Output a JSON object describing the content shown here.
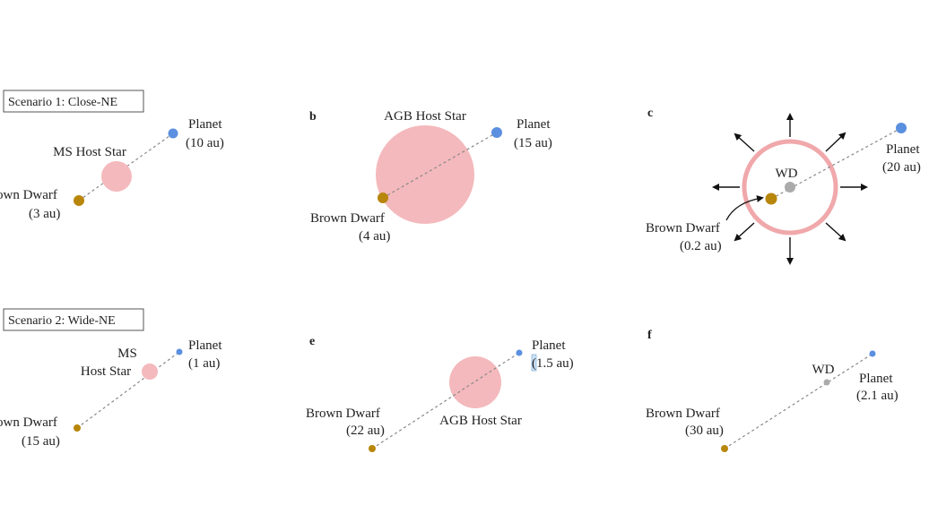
{
  "scenarios": {
    "s1": "Scenario 1: Close-NE",
    "s2": "Scenario 2: Wide-NE"
  },
  "panels": {
    "a": {
      "host": "MS Host Star",
      "planet": [
        "Planet",
        "(10 au)"
      ],
      "bd": [
        "own Dwarf",
        "(3 au)"
      ]
    },
    "b": {
      "letter": "b",
      "host": "AGB Host Star",
      "planet": [
        "Planet",
        "(15 au)"
      ],
      "bd": [
        "Brown Dwarf",
        "(4 au)"
      ]
    },
    "c": {
      "letter": "c",
      "host": "WD",
      "planet": [
        "Planet",
        "(20 au)"
      ],
      "bd": [
        "Brown Dwarf",
        "(0.2 au)"
      ]
    },
    "d": {
      "host": [
        "MS",
        "Host Star"
      ],
      "planet": [
        "Planet",
        "(1 au)"
      ],
      "bd": [
        "own Dwarf",
        "(15 au)"
      ]
    },
    "e": {
      "letter": "e",
      "host": "AGB Host Star",
      "planet": [
        "Planet",
        "(1.5 au)"
      ],
      "bd": [
        "Brown Dwarf",
        "(22 au)"
      ]
    },
    "f": {
      "letter": "f",
      "host": "WD",
      "planet": [
        "Planet",
        "(2.1 au)"
      ],
      "bd": [
        "Brown Dwarf",
        "(30 au)"
      ]
    }
  },
  "colors": {
    "host_star": "#f4b9bc",
    "planet": "#5b8fe0",
    "brown_dwarf": "#b8860b",
    "white_dwarf": "#aaaaaa",
    "orbit_line": "#888888",
    "ring": "#f0a8ab"
  }
}
